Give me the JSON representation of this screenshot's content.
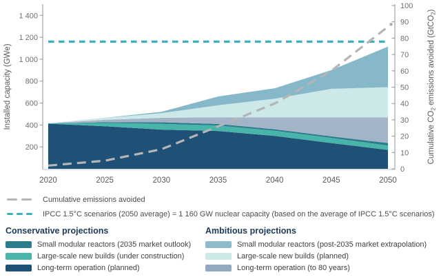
{
  "chart_data": {
    "type": "area",
    "stacked": true,
    "x": [
      2020,
      2025,
      2030,
      2035,
      2040,
      2045,
      2050
    ],
    "x_tick_labels": [
      "2020",
      "2025",
      "2030",
      "2035",
      "2040",
      "2045",
      "2050"
    ],
    "left_axis": {
      "title": "Installed capacity (GWe)",
      "range": [
        0,
        1400
      ],
      "tick_values": [
        200,
        400,
        600,
        800,
        1000,
        1200,
        1400
      ],
      "tick_labels": [
        "200",
        "400",
        "600",
        "800",
        "1 000",
        "1 200",
        "1 400"
      ]
    },
    "right_axis": {
      "title_parts": [
        {
          "t": "Cumulative CO"
        },
        {
          "t": "2",
          "sub": true
        },
        {
          "t": " emissions avoided (GtCO"
        },
        {
          "t": "2",
          "sub": true
        },
        {
          "t": ")"
        }
      ],
      "range": [
        0,
        100
      ],
      "tick_values": [
        0,
        10,
        20,
        30,
        40,
        50,
        60,
        70,
        80,
        90,
        100
      ],
      "tick_labels": [
        "0",
        "10",
        "20",
        "30",
        "40",
        "50",
        "60",
        "70",
        "80",
        "90",
        "100"
      ]
    },
    "series": [
      {
        "id": "lto-planned",
        "name": "Long-term operation (planned)",
        "group": "Conservative projections",
        "color": "#1f5176",
        "values": [
          412,
          388,
          358,
          345,
          300,
          235,
          172
        ]
      },
      {
        "id": "lsnb-under-construction",
        "name": "Large-scale new builds (under construction)",
        "group": "Conservative projections",
        "color": "#49b4a9",
        "values": [
          3,
          30,
          52,
          50,
          47,
          47,
          40
        ]
      },
      {
        "id": "smr-2035-outlook",
        "name": "Small modular reactors (2035 market outlook)",
        "group": "Conservative projections",
        "color": "#2b7d8e",
        "values": [
          0,
          7,
          15,
          14,
          14,
          14,
          23
        ]
      },
      {
        "id": "lto-80-years",
        "name": "Long-term operation (to 80 years)",
        "group": "Ambitious projections",
        "color": "#a4b4c7",
        "values": [
          0,
          22,
          40,
          61,
          109,
          174,
          235
        ]
      },
      {
        "id": "lsnb-planned",
        "name": "Large-scale new builds (planned)",
        "group": "Ambitious projections",
        "color": "#cde8e9",
        "values": [
          0,
          16,
          43,
          110,
          170,
          260,
          275
        ]
      },
      {
        "id": "smr-post-2035",
        "name": "Small modular reactors (post-2035 market extrapolation)",
        "group": "Ambitious projections",
        "color": "#86b8c9",
        "values": [
          0,
          2,
          12,
          80,
          95,
          170,
          370
        ]
      }
    ],
    "emissions_line": {
      "name": "Cumulative emissions avoided",
      "axis": "right",
      "color": "#b3b5b7",
      "values": [
        2,
        5,
        12,
        26,
        40,
        60,
        87
      ],
      "end_dot": true
    },
    "reference_line": {
      "name": "IPCC 1.5C scenarios (2050 average)",
      "axis": "left",
      "value": 1160,
      "color": "#3fb0b7"
    }
  },
  "legend": {
    "rows": [
      {
        "label": "Cumulative emissions avoided",
        "color": "#b3b5b7"
      },
      {
        "label": "IPCC 1.5°C scenarios (2050 average) = 1 160 GW nuclear capacity (based on the average of IPCC 1.5°C scenarios)",
        "color": "#3fb0b7"
      }
    ]
  },
  "legend_groups": [
    {
      "title": "Conservative projections",
      "items": [
        {
          "label": "Small modular reactors (2035 market outlook)",
          "color": "#2b7d8e"
        },
        {
          "label": "Large-scale new builds (under construction)",
          "color": "#49b4a9"
        },
        {
          "label": "Long-term operation (planned)",
          "color": "#1f5176"
        }
      ]
    },
    {
      "title": "Ambitious projections",
      "items": [
        {
          "label": "Small modular reactors (post-2035 market extrapolation)",
          "color": "#8fbccb"
        },
        {
          "label": "Large-scale new builds (planned)",
          "color": "#cde8e9"
        },
        {
          "label": "Long-term operation (to 80 years)",
          "color": "#93a9c0"
        }
      ]
    }
  ]
}
